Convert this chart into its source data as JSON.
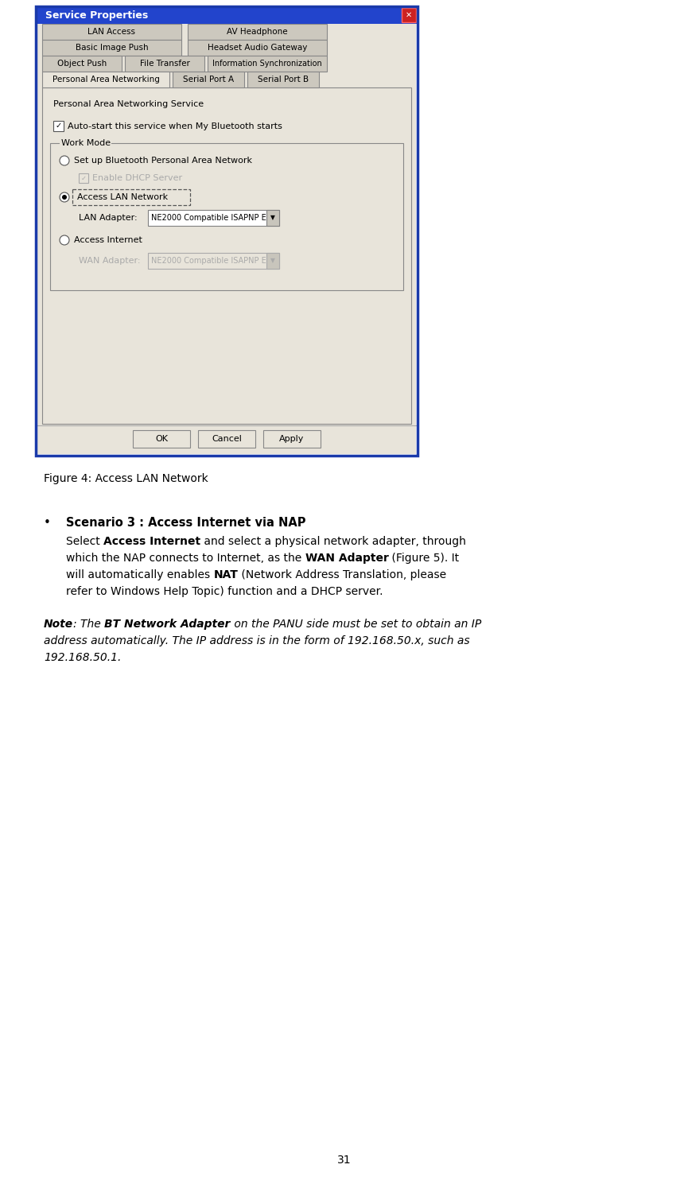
{
  "page_width": 8.65,
  "page_height": 14.84,
  "dpi": 100,
  "bg_color": "#ffffff",
  "dialog": {
    "title": "Service Properties",
    "title_bg": "#2244cc",
    "title_color": "#ffffff",
    "border_color": "#1a3aaa",
    "body_bg": "#e8e4da",
    "service_label": "Personal Area Networking Service",
    "autostart_label": "Auto-start this service when My Bluetooth starts",
    "workmode_label": "Work Mode",
    "radio1_label": "Set up Bluetooth Personal Area Network",
    "checkbox_label": "Enable DHCP Server",
    "radio2_label": "Access LAN Network",
    "lan_adapter_label": "LAN Adapter:",
    "lan_adapter_value": "NE2000 Compatible ISAPNP E",
    "radio3_label": "Access Internet",
    "wan_adapter_label": "WAN Adapter:",
    "wan_adapter_value": "NE2000 Compatible ISAPNP E",
    "btn_ok": "OK",
    "btn_cancel": "Cancel",
    "btn_apply": "Apply"
  },
  "figure_caption": "Figure 4: Access LAN Network",
  "bullet_title": "Scenario 3 : Access Internet via NAP",
  "note_parts": [
    {
      "text": "Note",
      "bold": true,
      "italic": true
    },
    {
      "text": ": The ",
      "bold": false,
      "italic": true
    },
    {
      "text": "BT Network Adapter",
      "bold": true,
      "italic": true
    },
    {
      "text": " on the PANU side must be set to obtain an IP address automatically. The IP address is in the form of 192.168.50.x, such as 192.168.50.1.",
      "bold": false,
      "italic": true
    }
  ],
  "page_number": "31"
}
